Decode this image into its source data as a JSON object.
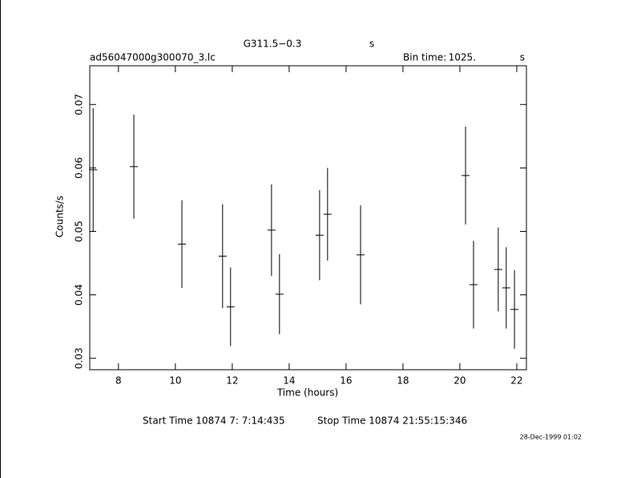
{
  "chart_data": {
    "type": "errorbar",
    "title": "G311.5−0.3",
    "title_unit": "s",
    "file_name": "ad56047000g300070_3.lc",
    "bin_label": "Bin time:",
    "bin_value": "1025.",
    "bin_unit": "s",
    "x_label": "Time (hours)",
    "y_label": "Counts/s",
    "start_label": "Start Time 10874  7: 7:14:435",
    "stop_label": "Stop Time 10874 21:55:15:346",
    "date_stamp": "28-Dec-1999 01:02",
    "xlim": [
      6.99,
      22.34
    ],
    "xticks": [
      8,
      10,
      12,
      14,
      16,
      18,
      20,
      22
    ],
    "ylim": [
      0.0282,
      0.0761
    ],
    "yticks": [
      0.03,
      0.04,
      0.05,
      0.06,
      0.07
    ],
    "series": [
      {
        "color": "#000000",
        "x": [
          7.11,
          8.54,
          10.23,
          11.66,
          11.94,
          13.38,
          13.66,
          15.07,
          15.35,
          16.51,
          20.2,
          20.48,
          21.35,
          21.63,
          21.92
        ],
        "values": [
          0.0597,
          0.0602,
          0.048,
          0.0461,
          0.0381,
          0.0502,
          0.0401,
          0.0494,
          0.0527,
          0.0463,
          0.0588,
          0.0416,
          0.044,
          0.0411,
          0.0377
        ],
        "errors": [
          0.0097,
          0.0082,
          0.0069,
          0.0082,
          0.0062,
          0.0072,
          0.0063,
          0.0071,
          0.0073,
          0.0078,
          0.0077,
          0.0069,
          0.0066,
          0.0064,
          0.0062
        ]
      }
    ]
  }
}
